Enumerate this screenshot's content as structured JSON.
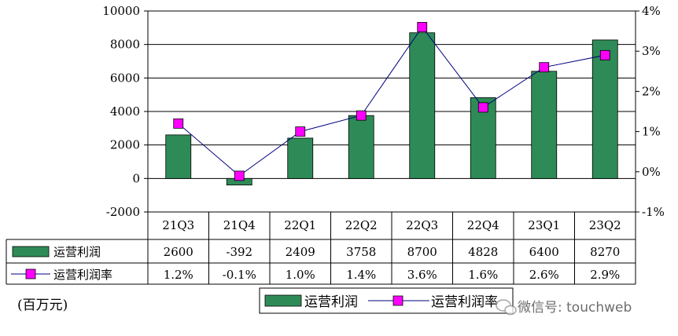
{
  "chart_data": {
    "type": "bar",
    "categories": [
      "21Q3",
      "21Q4",
      "22Q1",
      "22Q2",
      "22Q3",
      "22Q4",
      "23Q1",
      "23Q2"
    ],
    "series": [
      {
        "name": "运营利润",
        "type": "bar",
        "axis": "left",
        "values": [
          2600,
          -392,
          2409,
          3758,
          8700,
          4828,
          6400,
          8270
        ],
        "table_labels": [
          "2600",
          "-392",
          "2409",
          "3758",
          "8700",
          "4828",
          "6400",
          "8270"
        ],
        "color": "#2e8b57"
      },
      {
        "name": "运营利润率",
        "type": "line",
        "axis": "right",
        "values": [
          1.2,
          -0.1,
          1.0,
          1.4,
          3.6,
          1.6,
          2.6,
          2.9
        ],
        "table_labels": [
          "1.2%",
          "-0.1%",
          "1.0%",
          "1.4%",
          "3.6%",
          "1.6%",
          "2.6%",
          "2.9%"
        ],
        "color": "#ff00ff",
        "line_color": "#000080"
      }
    ],
    "left_axis": {
      "min": -2000,
      "max": 10000,
      "step": 2000,
      "ticks": [
        "-2000",
        "0",
        "2000",
        "4000",
        "6000",
        "8000",
        "10000"
      ]
    },
    "right_axis": {
      "min": -1,
      "max": 4,
      "step": 1,
      "ticks": [
        "-1%",
        "0%",
        "1%",
        "2%",
        "3%",
        "4%"
      ]
    },
    "unit_label": "(百万元)",
    "legend": {
      "placement": "bottom",
      "items": [
        "运营利润",
        "运营利润率"
      ]
    },
    "grid": true,
    "data_table": true
  },
  "watermark": {
    "text": "微信号: touchweb",
    "icon": "wechat-icon"
  }
}
